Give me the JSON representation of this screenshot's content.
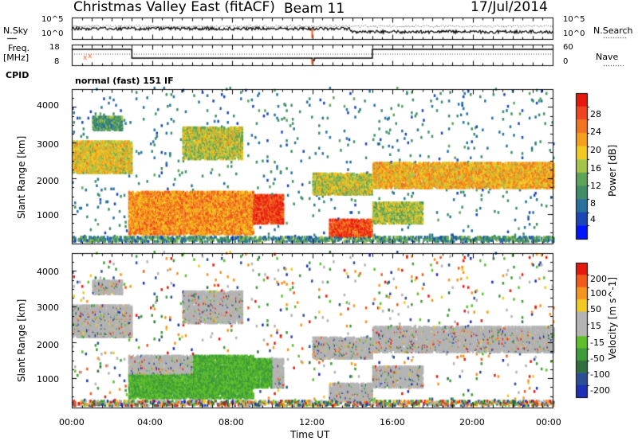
{
  "header": {
    "station": "Christmas Valley East (fitACF)",
    "beam": "Beam 11",
    "date": "17/Jul/2014"
  },
  "noise_panel": {
    "left_label": "N.Sky",
    "right_label": "N.Search",
    "ticks_top": "10^5",
    "ticks_bottom": "10^0"
  },
  "freq_panel": {
    "left_label_1": "Freq.",
    "left_label_2": "[MHz]",
    "left_ticks": [
      "18",
      "8"
    ],
    "right_label": "Nave",
    "right_ticks": [
      "60",
      "0"
    ]
  },
  "cpid": {
    "label": "CPID",
    "value": "normal (fast) 151 IF"
  },
  "colors": {
    "power": [
      "#0015ff",
      "#1a46b8",
      "#27719e",
      "#3e8f66",
      "#5ea35a",
      "#a6c44a",
      "#f2c823",
      "#f59f1f",
      "#f27322",
      "#f0431f",
      "#e6190f"
    ],
    "velocity": [
      "#e6190f",
      "#f25a1c",
      "#f5941f",
      "#f2c823",
      "#b4b4b4",
      "#b4b4b4",
      "#5fbe2c",
      "#3e9c3a",
      "#31703e",
      "#2b4f96",
      "#1e2fb8"
    ]
  },
  "chart_data": [
    {
      "type": "heatmap",
      "name": "power",
      "xlabel": "",
      "ylabel": "Slant Range [km]",
      "colorbar_label": "Power [dB]",
      "colorbar_ticks": [
        "28",
        "24",
        "20",
        "16",
        "12",
        "8",
        "4"
      ],
      "ylim": [
        180,
        4500
      ],
      "xlim": [
        0,
        24
      ],
      "yticks": [
        "4000",
        "3000",
        "2000",
        "1000"
      ],
      "regions": [
        {
          "t": [
            0.0,
            3.0
          ],
          "r": [
            2100,
            3000
          ],
          "level": 18
        },
        {
          "t": [
            1.0,
            2.5
          ],
          "r": [
            3300,
            3700
          ],
          "level": 10
        },
        {
          "t": [
            2.8,
            9.0
          ],
          "r": [
            400,
            1600
          ],
          "level": 22
        },
        {
          "t": [
            3.0,
            5.0
          ],
          "r": [
            400,
            1000
          ],
          "level": 27
        },
        {
          "t": [
            5.5,
            8.5
          ],
          "r": [
            2500,
            3400
          ],
          "level": 16
        },
        {
          "t": [
            7.5,
            10.5
          ],
          "r": [
            700,
            1500
          ],
          "level": 28
        },
        {
          "t": [
            12.0,
            15.0
          ],
          "r": [
            1500,
            2100
          ],
          "level": 16
        },
        {
          "t": [
            12.8,
            15.0
          ],
          "r": [
            300,
            800
          ],
          "level": 27
        },
        {
          "t": [
            15.0,
            24.0
          ],
          "r": [
            1700,
            2400
          ],
          "level": 20
        },
        {
          "t": [
            15.0,
            17.5
          ],
          "r": [
            700,
            1300
          ],
          "level": 15
        }
      ]
    },
    {
      "type": "heatmap",
      "name": "velocity",
      "xlabel": "Time UT",
      "ylabel": "Slant Range [km]",
      "colorbar_label": "Velocity [m s^-1]",
      "colorbar_ticks": [
        "200",
        "100",
        "50",
        "15",
        "-15",
        "-50",
        "-100",
        "-200"
      ],
      "ylim": [
        180,
        4500
      ],
      "xlim": [
        0,
        24
      ],
      "yticks": [
        "4000",
        "3000",
        "2000",
        "1000"
      ],
      "xticks": [
        "00:00",
        "04:00",
        "08:00",
        "12:00",
        "16:00",
        "20:00",
        "00:00"
      ]
    }
  ]
}
